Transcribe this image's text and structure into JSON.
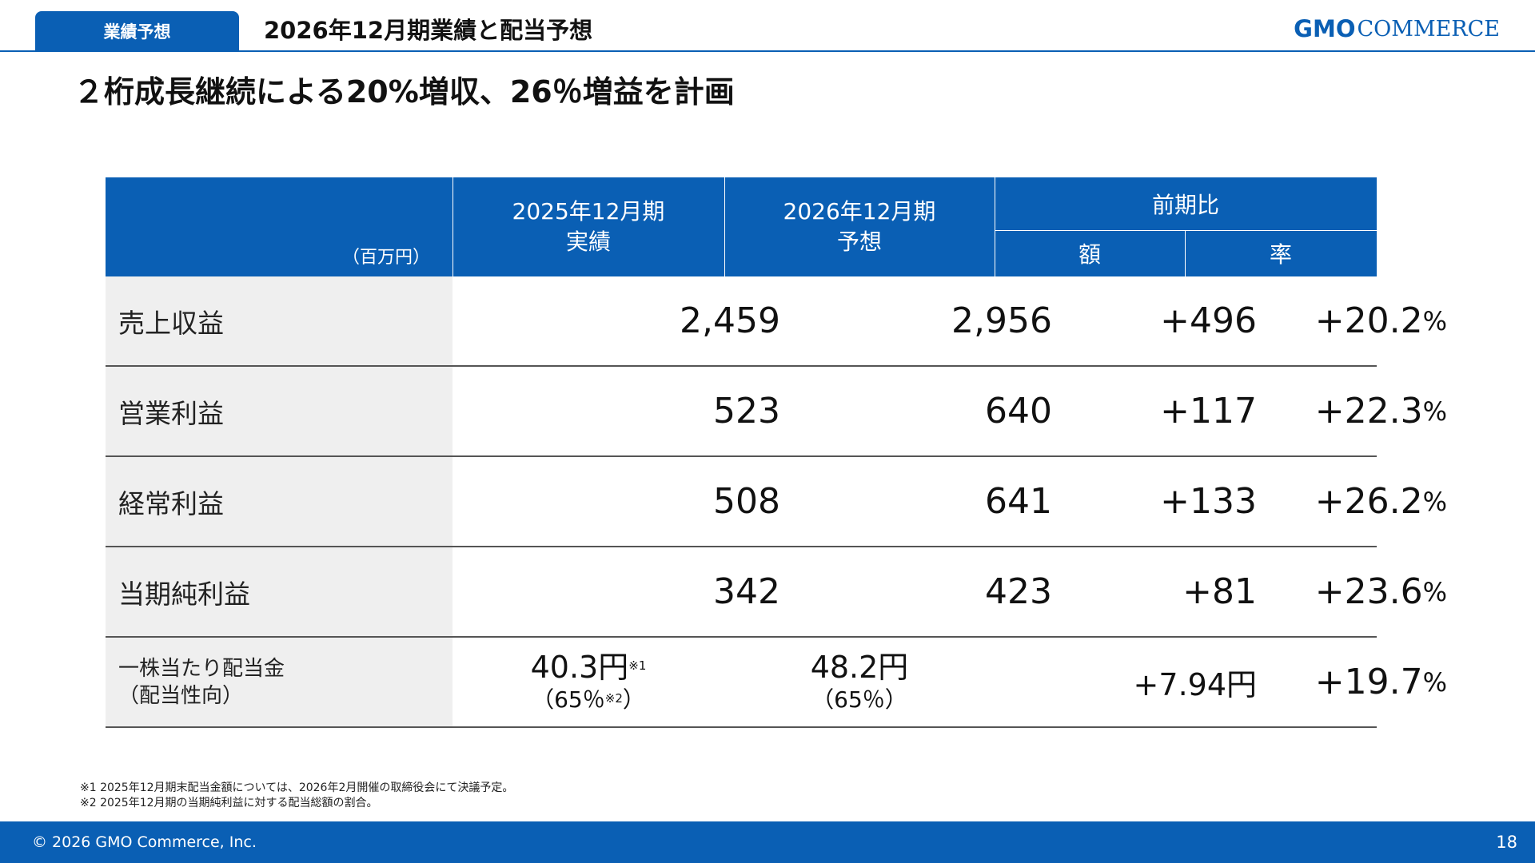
{
  "header": {
    "tag": "業績予想",
    "title": "2026年12月期業績と配当予想",
    "logo_gmo": "GMO",
    "logo_company": "COMMERCE"
  },
  "headline": "２桁成長継続による20%増収、26％増益を計画",
  "table": {
    "unit": "（百万円）",
    "col1": {
      "line1": "2025年12月期",
      "line2": "実績"
    },
    "col2": {
      "line1": "2026年12月期",
      "line2": "予想"
    },
    "group": "前期比",
    "sub_amount": "額",
    "sub_rate": "率",
    "rows": [
      {
        "label": "売上収益",
        "actual": "2,459",
        "forecast": "2,956",
        "diff": "+496",
        "rate": "+20.2",
        "rate_unit": "%"
      },
      {
        "label": "営業利益",
        "actual": "523",
        "forecast": "640",
        "diff": "+117",
        "rate": "+22.3",
        "rate_unit": "%"
      },
      {
        "label": "経常利益",
        "actual": "508",
        "forecast": "641",
        "diff": "+133",
        "rate": "+26.2",
        "rate_unit": "%"
      },
      {
        "label": "当期純利益",
        "actual": "342",
        "forecast": "423",
        "diff": "+81",
        "rate": "+23.6",
        "rate_unit": "%"
      }
    ],
    "dividend": {
      "label_line1": "一株当たり配当金",
      "label_line2": "（配当性向）",
      "actual_main": "40.3円",
      "actual_note": "※1",
      "actual_sub": "（65％",
      "actual_sub_note": "※2",
      "actual_sub_close": "）",
      "forecast_main": "48.2円",
      "forecast_sub": "（65％）",
      "diff": "+7.94円",
      "rate": "+19.7",
      "rate_unit": "%"
    }
  },
  "notes": [
    "※1 2025年12月期末配当金額については、2026年2月開催の取締役会にて決議予定。",
    "※2 2025年12月期の当期純利益に対する配当総額の割合。"
  ],
  "footer": {
    "copyright": "© 2026 GMO Commerce, Inc.",
    "page": "18"
  },
  "colors": {
    "brand": "#0a5fb4",
    "label_bg": "#efefef"
  }
}
